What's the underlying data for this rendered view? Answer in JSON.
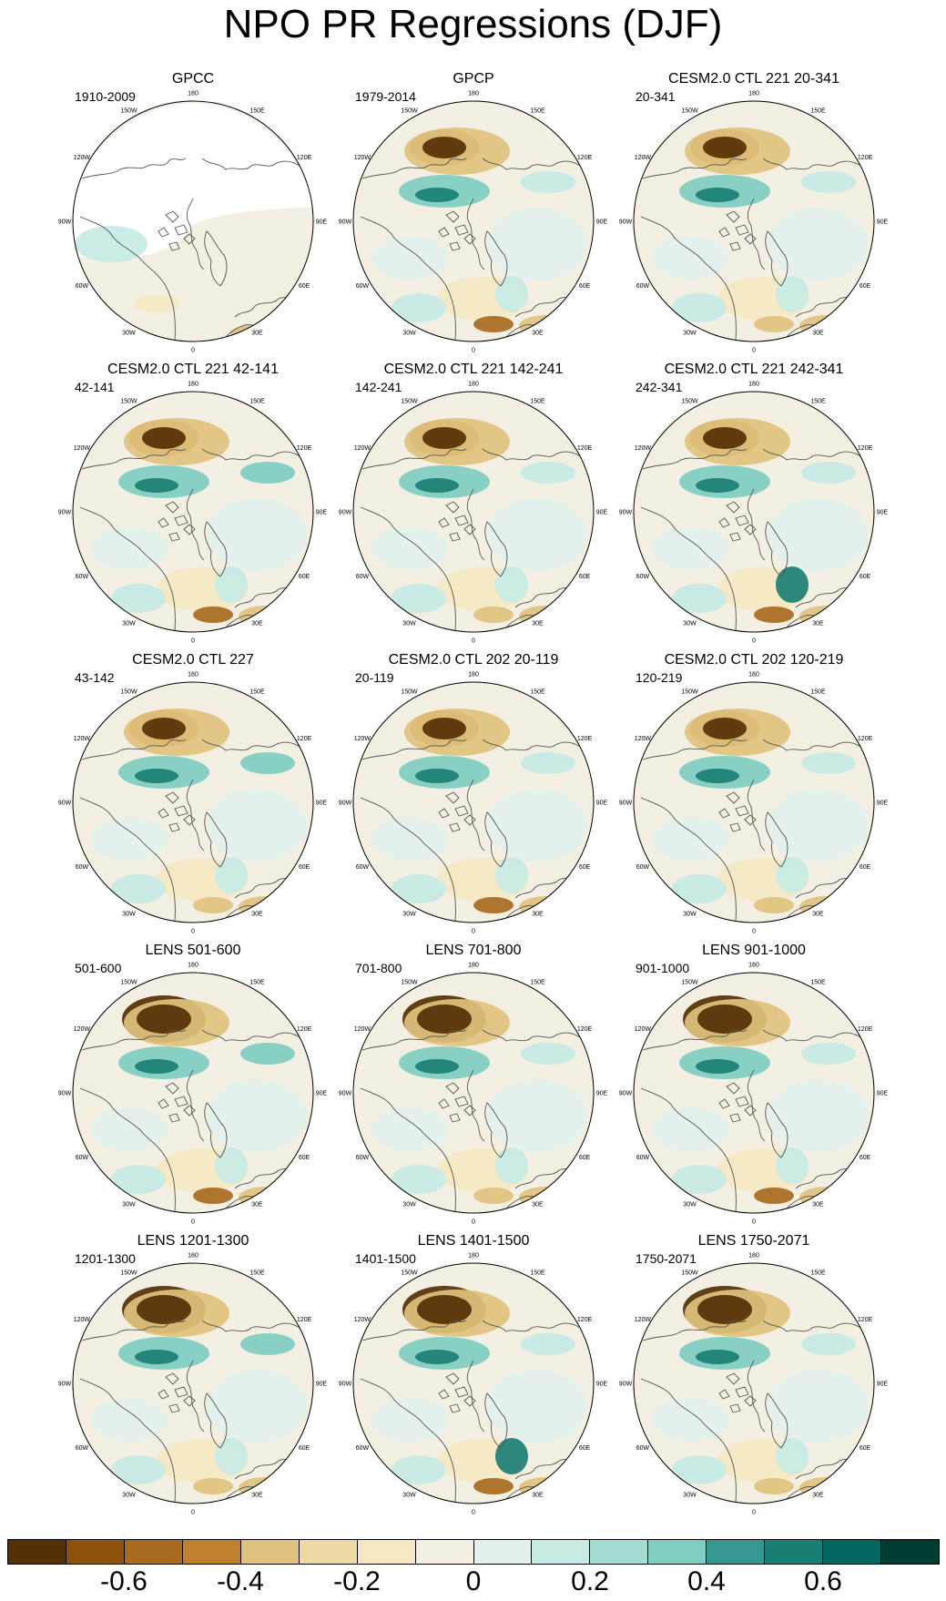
{
  "title": "NPO PR Regressions (DJF)",
  "panels": [
    {
      "title": "GPCC",
      "subtitle": "1910-2009"
    },
    {
      "title": "GPCP",
      "subtitle": "1979-2014"
    },
    {
      "title": "CESM2.0 CTL 221 20-341",
      "subtitle": "20-341"
    },
    {
      "title": "CESM2.0 CTL 221 42-141",
      "subtitle": "42-141"
    },
    {
      "title": "CESM2.0 CTL 221 142-241",
      "subtitle": "142-241"
    },
    {
      "title": "CESM2.0 CTL 221 242-341",
      "subtitle": "242-341"
    },
    {
      "title": "CESM2.0 CTL 227",
      "subtitle": "43-142"
    },
    {
      "title": "CESM2.0 CTL 202 20-119",
      "subtitle": "20-119"
    },
    {
      "title": "CESM2.0 CTL 202 120-219",
      "subtitle": "120-219"
    },
    {
      "title": "LENS 501-600",
      "subtitle": "501-600"
    },
    {
      "title": "LENS 701-800",
      "subtitle": "701-800"
    },
    {
      "title": "LENS 901-1000",
      "subtitle": "901-1000"
    },
    {
      "title": "LENS 1201-1300",
      "subtitle": "1201-1300"
    },
    {
      "title": "LENS 1401-1500",
      "subtitle": "1401-1500"
    },
    {
      "title": "LENS 1750-2071",
      "subtitle": "1750-2071"
    }
  ],
  "longitude_labels": [
    "180",
    "150E",
    "120E",
    "90E",
    "60E",
    "30E",
    "0",
    "30W",
    "60W",
    "90W",
    "120W",
    "150W"
  ],
  "colorbar": {
    "colors": [
      "#543005",
      "#8c510a",
      "#a86a1e",
      "#bf812d",
      "#dfc27d",
      "#ecd9a6",
      "#f6e8c3",
      "#f3efe3",
      "#e4f1ee",
      "#c7eae5",
      "#a3ddd2",
      "#80cdc1",
      "#35978f",
      "#1b7e74",
      "#01665e",
      "#003c30"
    ],
    "labels": [
      "-0.6",
      "-0.4",
      "-0.2",
      "0",
      "0.2",
      "0.4",
      "0.6"
    ]
  }
}
